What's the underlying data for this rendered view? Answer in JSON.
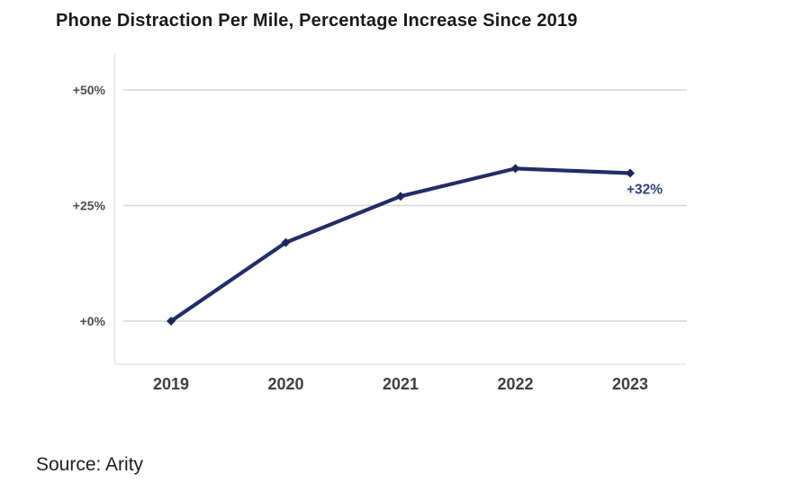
{
  "page": {
    "title": "Phone Distraction Per Mile, Percentage Increase Since 2019",
    "source": "Source: Arity"
  },
  "chart_data": {
    "type": "line",
    "title": "Phone Distraction Per Mile, Percentage Increase Since 2019",
    "categories": [
      "2019",
      "2020",
      "2021",
      "2022",
      "2023"
    ],
    "series": [
      {
        "name": "Phone distraction per mile, % increase since 2019",
        "values": [
          0,
          17,
          27,
          33,
          32
        ]
      }
    ],
    "ylim": [
      0,
      50
    ],
    "yticks": [
      {
        "value": 50,
        "label": "+50%"
      },
      {
        "value": 25,
        "label": "+25%"
      },
      {
        "value": 0,
        "label": "+0%"
      }
    ],
    "grid": "horizontal",
    "legend": "none",
    "annotation": {
      "text": "+32%",
      "attach_to": "last-point"
    },
    "colors": {
      "line": "#222d66",
      "marker": "#1d2759",
      "annotation": "#33427c",
      "grid": "#d6d6d6",
      "axis": "#e7e7e7",
      "ytick_label": "#4f4f4f",
      "xtick_label": "#3f3f3f"
    }
  }
}
